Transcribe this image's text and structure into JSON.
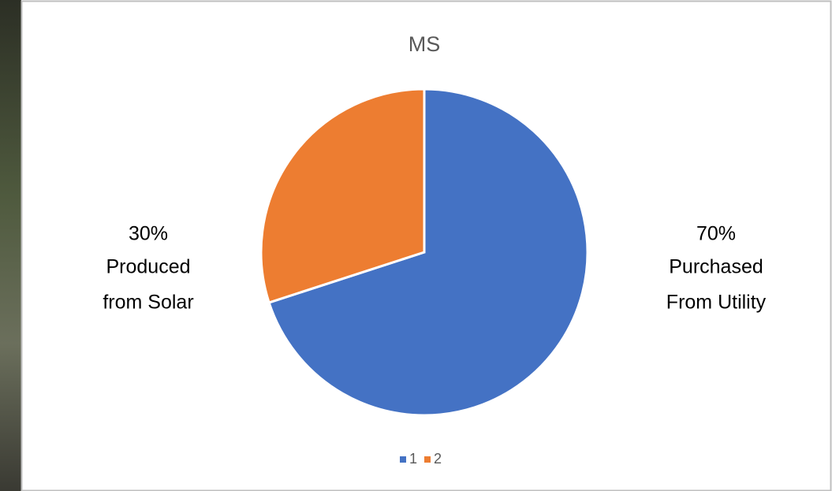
{
  "chart_data": {
    "type": "pie",
    "title": "MS",
    "categories": [
      "1",
      "2"
    ],
    "values": [
      70,
      30
    ],
    "value_labels": [
      "70%",
      "30%"
    ],
    "data_label_lines": [
      [
        "Purchased",
        "From Utility"
      ],
      [
        "Produced",
        "from Solar"
      ]
    ],
    "colors": [
      "#4472c4",
      "#ed7d31"
    ],
    "legend": "bottom"
  }
}
